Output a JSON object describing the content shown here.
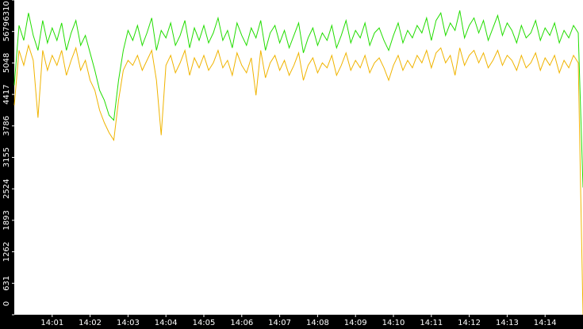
{
  "chart_data": {
    "type": "line",
    "xlim": [
      0,
      15
    ],
    "xticks": [
      {
        "value": 1,
        "label": "14:01"
      },
      {
        "value": 2,
        "label": "14:02"
      },
      {
        "value": 3,
        "label": "14:03"
      },
      {
        "value": 4,
        "label": "14:04"
      },
      {
        "value": 5,
        "label": "14:05"
      },
      {
        "value": 6,
        "label": "14:06"
      },
      {
        "value": 7,
        "label": "14:07"
      },
      {
        "value": 8,
        "label": "14:08"
      },
      {
        "value": 9,
        "label": "14:09"
      },
      {
        "value": 10,
        "label": "14:10"
      },
      {
        "value": 11,
        "label": "14:11"
      },
      {
        "value": 12,
        "label": "14:12"
      },
      {
        "value": 13,
        "label": "14:13"
      },
      {
        "value": 14,
        "label": "14:14"
      }
    ],
    "ylim": [
      0,
      6310
    ],
    "yticks": [
      0,
      631,
      1262,
      1893,
      2524,
      3155,
      3786,
      4417,
      5048,
      5679,
      6310
    ],
    "x": [
      0,
      0.125,
      0.25,
      0.375,
      0.5,
      0.625,
      0.75,
      0.875,
      1,
      1.125,
      1.25,
      1.375,
      1.5,
      1.625,
      1.75,
      1.875,
      2,
      2.125,
      2.25,
      2.375,
      2.5,
      2.625,
      2.75,
      2.875,
      3,
      3.125,
      3.25,
      3.375,
      3.5,
      3.625,
      3.75,
      3.875,
      4,
      4.125,
      4.25,
      4.375,
      4.5,
      4.625,
      4.75,
      4.875,
      5,
      5.125,
      5.25,
      5.375,
      5.5,
      5.625,
      5.75,
      5.875,
      6,
      6.125,
      6.25,
      6.375,
      6.5,
      6.625,
      6.75,
      6.875,
      7,
      7.125,
      7.25,
      7.375,
      7.5,
      7.625,
      7.75,
      7.875,
      8,
      8.125,
      8.25,
      8.375,
      8.5,
      8.625,
      8.75,
      8.875,
      9,
      9.125,
      9.25,
      9.375,
      9.5,
      9.625,
      9.75,
      9.875,
      10,
      10.125,
      10.25,
      10.375,
      10.5,
      10.625,
      10.75,
      10.875,
      11,
      11.125,
      11.25,
      11.375,
      11.5,
      11.625,
      11.75,
      11.875,
      12,
      12.125,
      12.25,
      12.375,
      12.5,
      12.625,
      12.75,
      12.875,
      13,
      13.125,
      13.25,
      13.375,
      13.5,
      13.625,
      13.75,
      13.875,
      14,
      14.125,
      14.25,
      14.375,
      14.5,
      14.625,
      14.75,
      14.875,
      15
    ],
    "series": [
      {
        "color": "#22dd00",
        "values": [
          4600,
          5800,
          5500,
          6050,
          5600,
          5300,
          5900,
          5450,
          5750,
          5500,
          5850,
          5300,
          5650,
          5900,
          5400,
          5600,
          5250,
          4900,
          4500,
          4300,
          4000,
          3900,
          4700,
          5300,
          5700,
          5500,
          5800,
          5400,
          5650,
          5950,
          5300,
          5700,
          5550,
          5850,
          5400,
          5600,
          5900,
          5350,
          5750,
          5500,
          5800,
          5450,
          5650,
          5950,
          5500,
          5700,
          5350,
          5850,
          5600,
          5400,
          5750,
          5550,
          5900,
          5300,
          5650,
          5800,
          5450,
          5700,
          5350,
          5600,
          5850,
          5250,
          5550,
          5750,
          5400,
          5650,
          5500,
          5800,
          5350,
          5600,
          5900,
          5450,
          5700,
          5550,
          5850,
          5400,
          5650,
          5750,
          5500,
          5300,
          5600,
          5850,
          5450,
          5700,
          5550,
          5800,
          5650,
          5950,
          5500,
          5900,
          6050,
          5600,
          5850,
          5700,
          6100,
          5550,
          5800,
          5950,
          5650,
          5900,
          5500,
          5750,
          6000,
          5600,
          5850,
          5700,
          5450,
          5800,
          5550,
          5650,
          5900,
          5500,
          5750,
          5600,
          5850,
          5450,
          5700,
          5550,
          5800,
          5650,
          2550
        ]
      },
      {
        "color": "#f0b400",
        "values": [
          4200,
          5300,
          5000,
          5400,
          5100,
          3950,
          5300,
          4900,
          5200,
          5000,
          5300,
          4800,
          5100,
          5350,
          4900,
          5100,
          4700,
          4500,
          4100,
          3850,
          3650,
          3500,
          4300,
          4900,
          5100,
          5000,
          5200,
          4900,
          5100,
          5300,
          4700,
          3600,
          5000,
          5200,
          4850,
          5050,
          5300,
          4800,
          5150,
          4950,
          5200,
          4900,
          5050,
          5300,
          4950,
          5100,
          4800,
          5250,
          5000,
          4850,
          5150,
          4400,
          5300,
          4750,
          5050,
          5200,
          4900,
          5100,
          4800,
          5000,
          5250,
          4700,
          5000,
          5150,
          4850,
          5050,
          4950,
          5200,
          4800,
          5000,
          5250,
          4900,
          5100,
          4950,
          5200,
          4850,
          5050,
          5150,
          4950,
          4700,
          5000,
          5200,
          4900,
          5100,
          4950,
          5200,
          5050,
          5300,
          4950,
          5250,
          5350,
          5050,
          5200,
          4800,
          5350,
          5000,
          5200,
          5300,
          5050,
          5250,
          4950,
          5100,
          5300,
          5000,
          5200,
          5100,
          4900,
          5200,
          4950,
          5050,
          5250,
          4900,
          5150,
          5000,
          5200,
          4850,
          5100,
          4950,
          5200,
          5050,
          0
        ]
      }
    ]
  }
}
